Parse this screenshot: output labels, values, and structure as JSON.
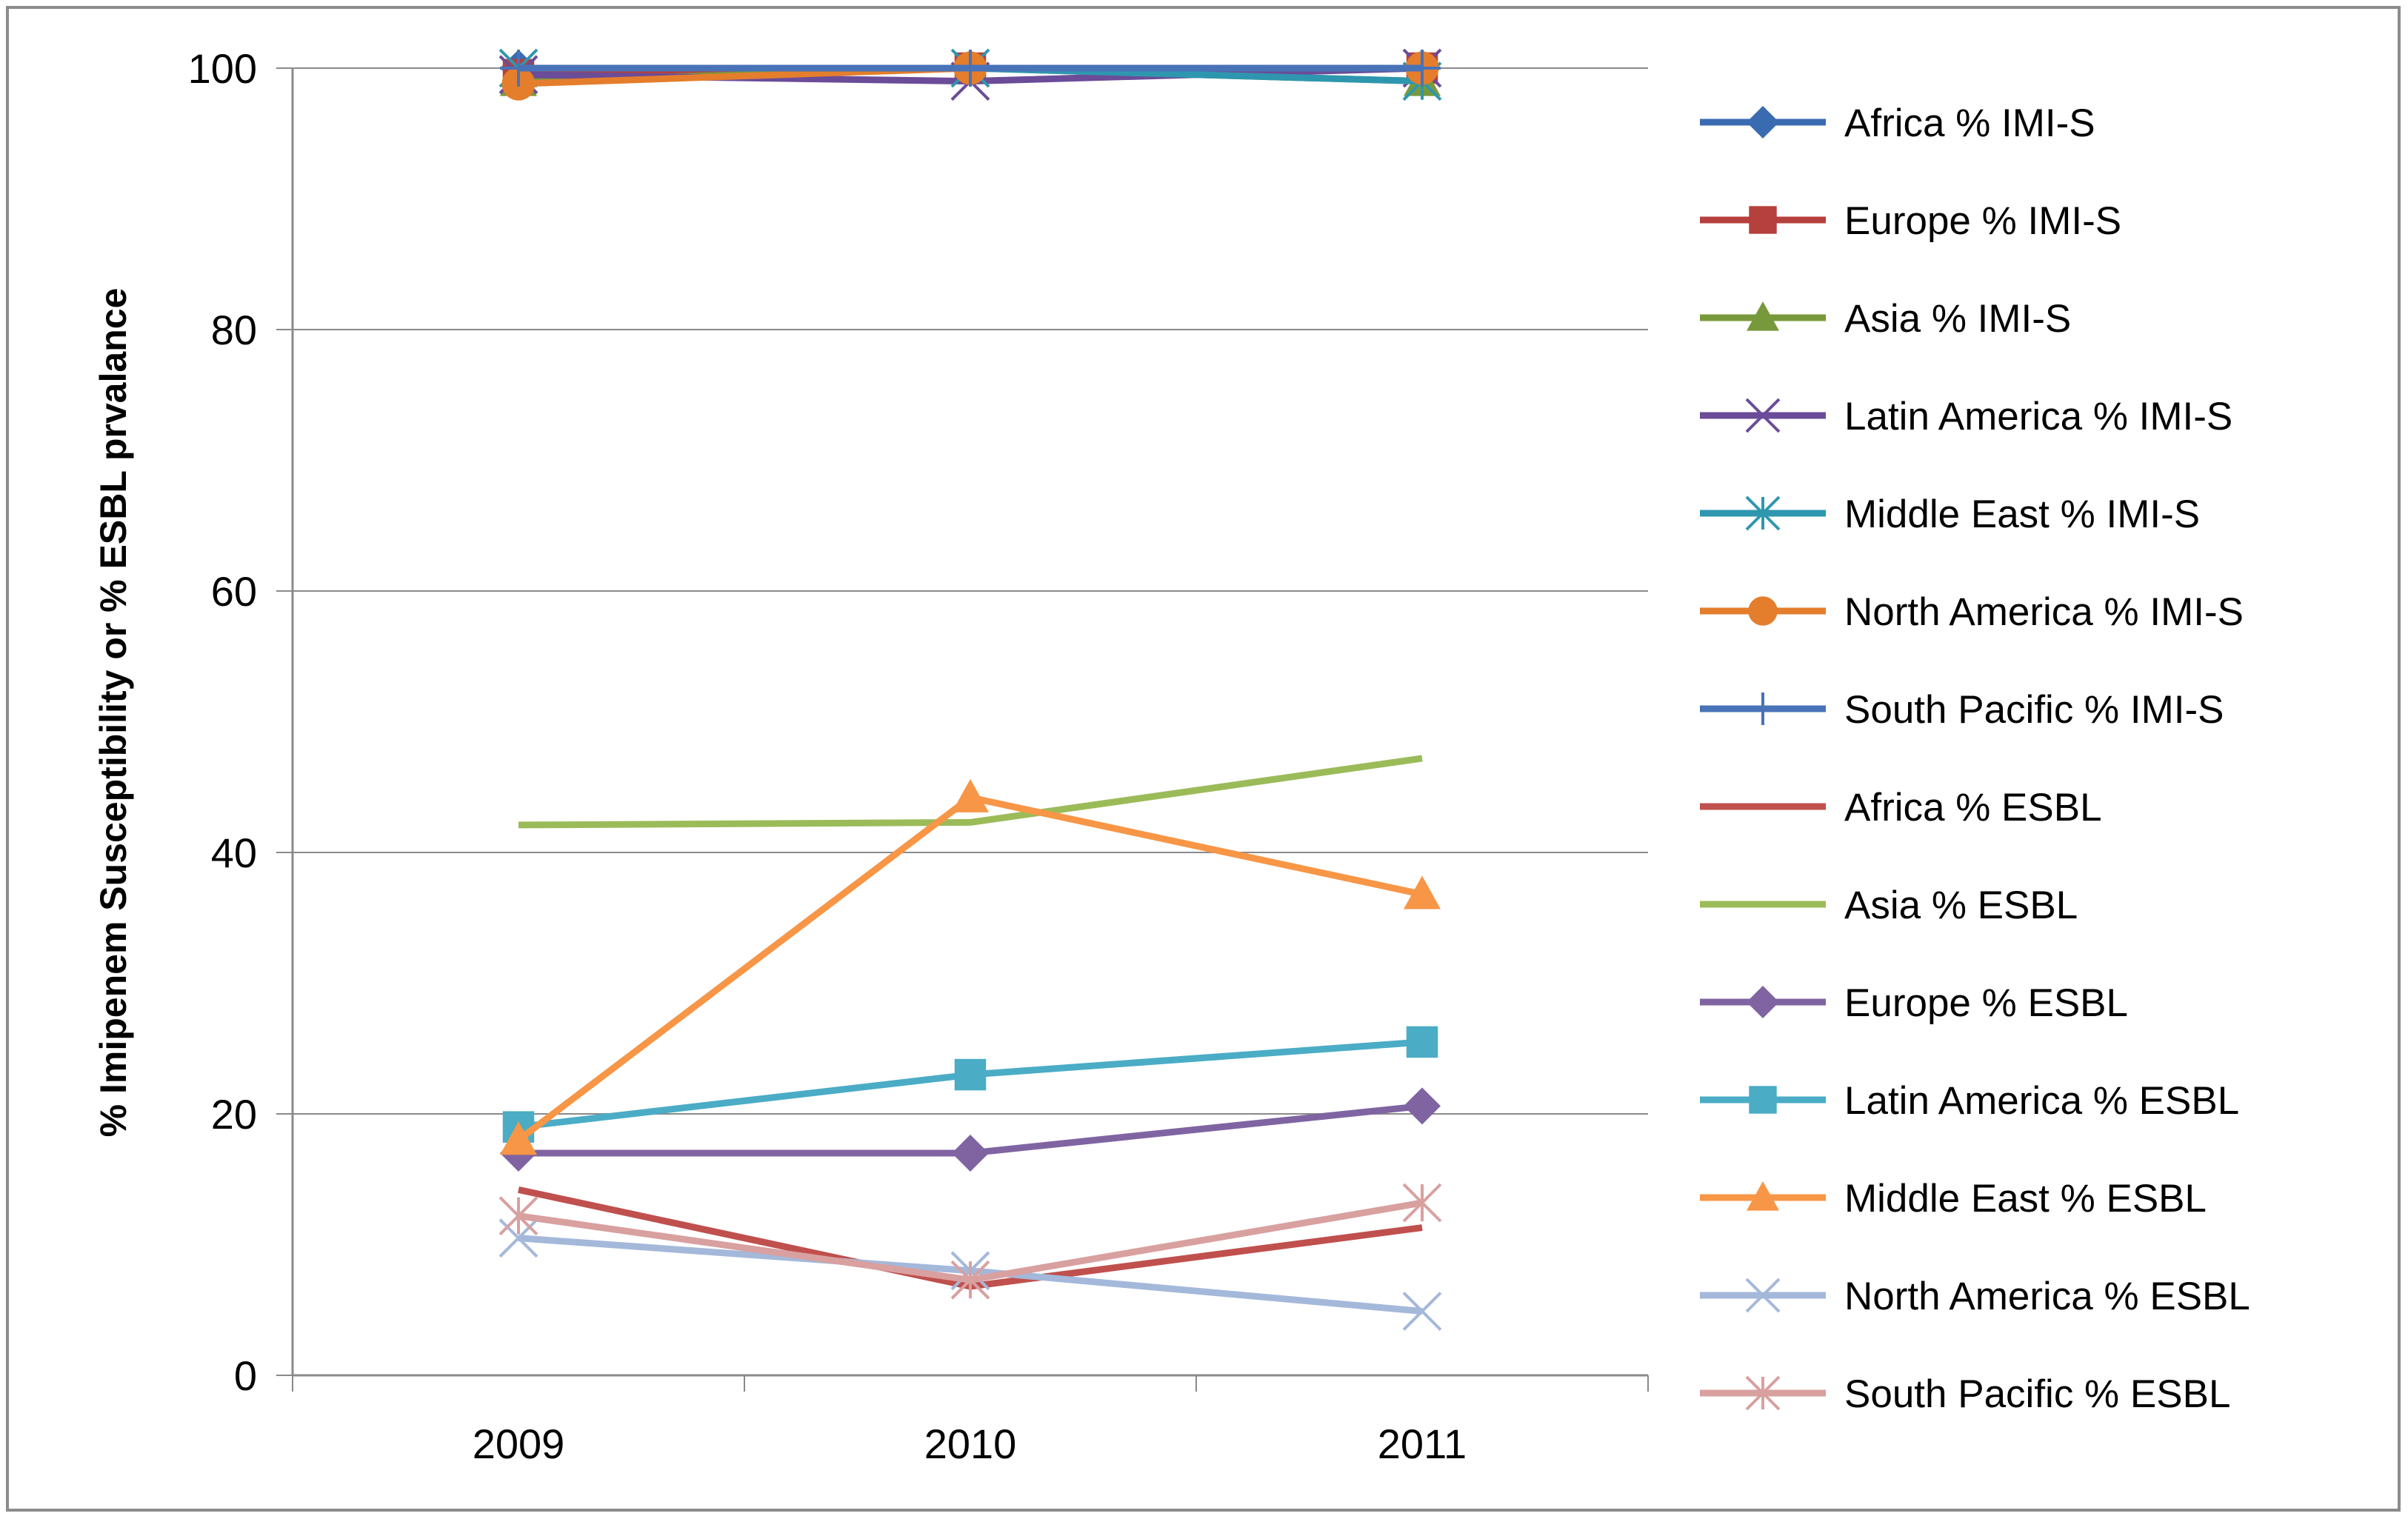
{
  "chart_data": {
    "type": "line",
    "title": "",
    "xlabel": "",
    "ylabel": "% Imipenem Susceptibility or % ESBL prvalance",
    "categories": [
      "2009",
      "2010",
      "2011"
    ],
    "ylim": [
      0,
      100
    ],
    "yticks": [
      0,
      20,
      40,
      60,
      80,
      100
    ],
    "grid": "horizontal",
    "legend_position": "right",
    "series": [
      {
        "name": "Africa % IMI-S",
        "values": [
          100,
          100,
          100
        ],
        "color": "#3A6BB1",
        "marker": "diamond"
      },
      {
        "name": "Europe % IMI-S",
        "values": [
          99.5,
          100,
          100
        ],
        "color": "#B5403E",
        "marker": "square"
      },
      {
        "name": "Asia % IMI-S",
        "values": [
          99,
          100,
          99
        ],
        "color": "#78993B",
        "marker": "triangle"
      },
      {
        "name": "Latin America % IMI-S",
        "values": [
          99.5,
          99,
          100
        ],
        "color": "#6B4C98",
        "marker": "x"
      },
      {
        "name": "Middle East % IMI-S",
        "values": [
          100,
          100,
          99
        ],
        "color": "#2E97AF",
        "marker": "star"
      },
      {
        "name": "North America % IMI-S",
        "values": [
          98.8,
          100,
          100
        ],
        "color": "#E47E2C",
        "marker": "circle"
      },
      {
        "name": "South Pacific % IMI-S",
        "values": [
          100,
          100,
          100
        ],
        "color": "#4873B8",
        "marker": "plus"
      },
      {
        "name": "Africa % ESBL",
        "values": [
          14.2,
          6.8,
          11.3
        ],
        "color": "#C0504D",
        "marker": "none"
      },
      {
        "name": "Asia % ESBL",
        "values": [
          42.1,
          42.3,
          47.2
        ],
        "color": "#9BBB59",
        "marker": "none"
      },
      {
        "name": "Europe % ESBL",
        "values": [
          17,
          17,
          20.6
        ],
        "color": "#8064A2",
        "marker": "diamond"
      },
      {
        "name": "Latin America % ESBL",
        "values": [
          19,
          23,
          25.5
        ],
        "color": "#4BACC6",
        "marker": "square"
      },
      {
        "name": "Middle East % ESBL",
        "values": [
          18,
          44.2,
          36.8
        ],
        "color": "#F79646",
        "marker": "triangle"
      },
      {
        "name": "North America % ESBL",
        "values": [
          10.5,
          8,
          4.9
        ],
        "color": "#A4B8DA",
        "marker": "x"
      },
      {
        "name": "South Pacific % ESBL",
        "values": [
          12.2,
          7.3,
          13.2
        ],
        "color": "#D9A0A0",
        "marker": "star"
      }
    ]
  }
}
